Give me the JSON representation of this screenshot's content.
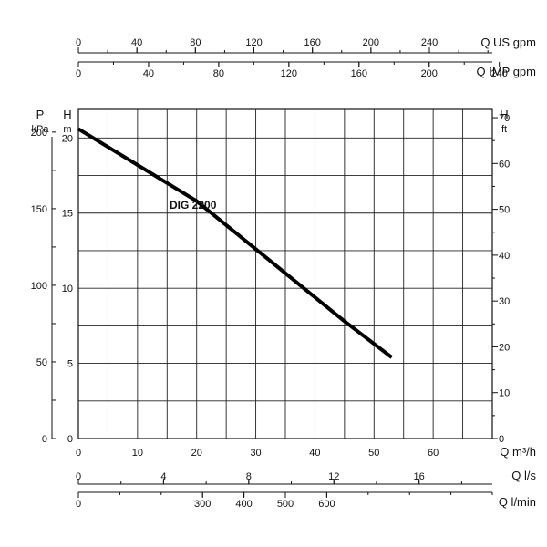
{
  "chart_data": {
    "type": "line",
    "title": "",
    "grid": true,
    "axes": {
      "q_us_gpm": {
        "label": "Q US gpm",
        "ticks": [
          "0",
          "40",
          "80",
          "120",
          "160",
          "200",
          "240"
        ],
        "range": [
          0,
          283
        ]
      },
      "q_imp_gpm": {
        "label": "Q IMP gpm",
        "ticks": [
          "0",
          "40",
          "80",
          "120",
          "160",
          "200",
          "240"
        ],
        "range": [
          0,
          236
        ]
      },
      "q_m3h": {
        "label": "Q m³/h",
        "ticks": [
          "0",
          "10",
          "20",
          "30",
          "40",
          "50",
          "60"
        ],
        "range": [
          0,
          70
        ]
      },
      "q_ls": {
        "label": "Q l/s",
        "ticks": [
          "0",
          "4",
          "8",
          "12",
          "16"
        ],
        "range": [
          0,
          19.44
        ]
      },
      "q_lmin": {
        "label": "Q l/min",
        "ticks": [
          "0",
          "300",
          "400",
          "500",
          "600"
        ],
        "range": [
          0,
          1000
        ]
      },
      "p_kpa": {
        "label": "P",
        "unit": "kPa",
        "ticks": [
          "0",
          "50",
          "100",
          "150",
          "200"
        ],
        "range": [
          0,
          214.8
        ]
      },
      "h_m": {
        "label": "H",
        "unit": "m",
        "ticks": [
          "0",
          "5",
          "10",
          "15",
          "20"
        ],
        "range": [
          0,
          21.9
        ]
      },
      "h_ft": {
        "label": "H",
        "unit": "ft",
        "ticks": [
          "0",
          "10",
          "20",
          "30",
          "40",
          "50",
          "60",
          "70"
        ],
        "range": [
          0,
          71.8
        ]
      }
    },
    "series": [
      {
        "name": "DIG 2200",
        "color": "#000000",
        "x_unit": "m³/h",
        "y_unit": "m",
        "points": [
          [
            0,
            20.6
          ],
          [
            5,
            19.4
          ],
          [
            10,
            18.2
          ],
          [
            15,
            17.0
          ],
          [
            20,
            15.8
          ],
          [
            25,
            14.2
          ],
          [
            30,
            12.6
          ],
          [
            35,
            11.0
          ],
          [
            40,
            9.4
          ],
          [
            45,
            7.8
          ],
          [
            50,
            6.3
          ],
          [
            53,
            5.4
          ]
        ]
      }
    ]
  }
}
